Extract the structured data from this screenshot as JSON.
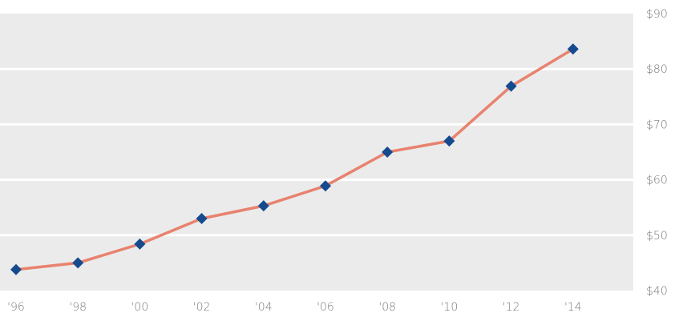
{
  "chart_data": {
    "type": "line",
    "x": [
      "'96",
      "'98",
      "'00",
      "'02",
      "'04",
      "'06",
      "'08",
      "'10",
      "'12",
      "'14"
    ],
    "series": [
      {
        "values": [
          43.8,
          45.0,
          48.4,
          53.0,
          55.3,
          58.9,
          65.0,
          67.0,
          76.9,
          83.6
        ]
      }
    ],
    "y_ticks": [
      "$40",
      "$50",
      "$60",
      "$70",
      "$80",
      "$90"
    ],
    "ylim": [
      40,
      90
    ],
    "grid": true,
    "y_axis_side": "right",
    "colors": {
      "plot_background": "#ebebeb",
      "gridline": "#ffffff",
      "line": "#e8826e",
      "marker": "#154a8e",
      "tick_label": "#7a7a7a"
    }
  }
}
